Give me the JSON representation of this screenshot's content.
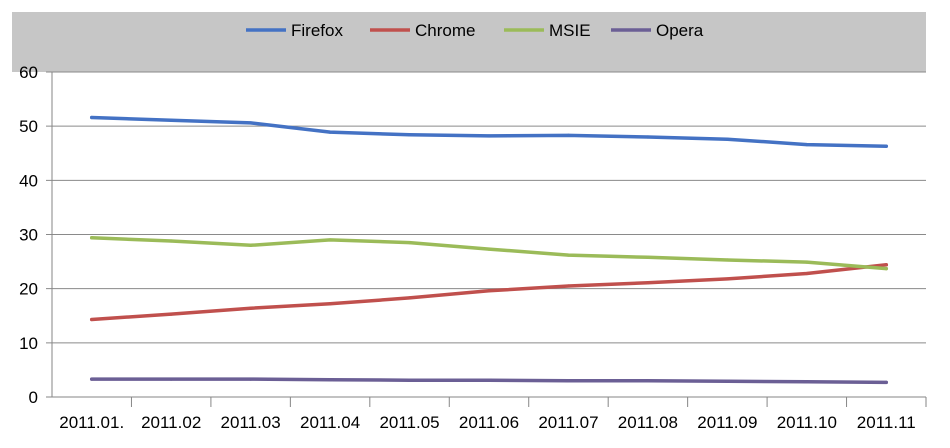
{
  "chart_data": {
    "type": "line",
    "categories": [
      "2011.01.",
      "2011.02",
      "2011.03",
      "2011.04",
      "2011.05",
      "2011.06",
      "2011.07",
      "2011.08",
      "2011.09",
      "2011.10",
      "2011.11"
    ],
    "series": [
      {
        "name": "Firefox",
        "color": "#4472C4",
        "values": [
          51.6,
          51.1,
          50.6,
          48.9,
          48.4,
          48.2,
          48.3,
          48.0,
          47.6,
          46.6,
          46.3
        ]
      },
      {
        "name": "Chrome",
        "color": "#C0504D",
        "values": [
          14.3,
          15.3,
          16.4,
          17.2,
          18.3,
          19.6,
          20.5,
          21.1,
          21.8,
          22.8,
          24.4
        ]
      },
      {
        "name": "MSIE",
        "color": "#9BBB59",
        "values": [
          29.4,
          28.8,
          28.0,
          29.0,
          28.5,
          27.3,
          26.2,
          25.8,
          25.3,
          24.9,
          23.7
        ]
      },
      {
        "name": "Opera",
        "color": "#6B5F95",
        "values": [
          3.3,
          3.3,
          3.3,
          3.2,
          3.1,
          3.1,
          3.0,
          3.0,
          2.9,
          2.8,
          2.7
        ]
      }
    ],
    "ylim": [
      0,
      60
    ],
    "yticks": [
      0,
      10,
      20,
      30,
      40,
      50,
      60
    ],
    "grid": true,
    "legend_position": "top"
  }
}
